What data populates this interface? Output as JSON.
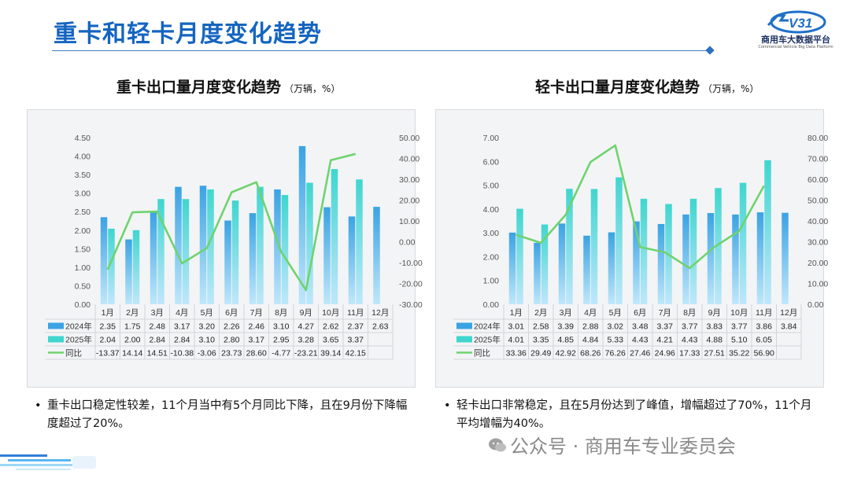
{
  "page": {
    "title": "重卡和轻卡月度变化趋势",
    "logo_name": "商用车大数据平台",
    "logo_sub": "Commercial Vehicle Big Data Platform",
    "logo_mark": "V31",
    "watermark": "公众号 · 商用车专业委员会"
  },
  "heavy": {
    "title": "重卡出口量月度变化趋势",
    "unit": "（万辆，%）",
    "note": "重卡出口稳定性较差，11个月当中有5个月同比下降，且在9月份下降幅度超过了20%。",
    "bullet": "•"
  },
  "light": {
    "title": "轻卡出口量月度变化趋势",
    "unit": "（万辆，%）",
    "note": "轻卡出口非常稳定，且在5月份达到了峰值，增幅超过了70%，11个月平均增幅为40%。",
    "bullet": "•"
  },
  "chart_data": [
    {
      "type": "bar",
      "title": "重卡出口量月度变化趋势",
      "categories": [
        "1月",
        "2月",
        "3月",
        "4月",
        "5月",
        "6月",
        "7月",
        "8月",
        "9月",
        "10月",
        "11月",
        "12月"
      ],
      "series": [
        {
          "name": "2024年",
          "kind": "bar",
          "color": "#3aa3e3",
          "values": [
            2.35,
            1.75,
            2.48,
            3.17,
            3.2,
            2.26,
            2.46,
            3.1,
            4.27,
            2.62,
            2.37,
            2.63
          ],
          "labels": [
            "2.35",
            "1.75",
            "2.48",
            "3.17",
            "3.20",
            "2.26",
            "2.46",
            "3.10",
            "4.27",
            "2.62",
            "2.37",
            "2.63"
          ]
        },
        {
          "name": "2025年",
          "kind": "bar",
          "color": "#3fd6cf",
          "values": [
            2.04,
            2.0,
            2.84,
            2.84,
            3.1,
            2.8,
            3.17,
            2.95,
            3.28,
            3.65,
            3.37,
            null
          ],
          "labels": [
            "2.04",
            "2.00",
            "2.84",
            "2.84",
            "3.10",
            "2.80",
            "3.17",
            "2.95",
            "3.28",
            "3.65",
            "3.37",
            ""
          ]
        },
        {
          "name": "同比",
          "kind": "line",
          "axis": "right",
          "color": "#6fd36f",
          "values": [
            -13.37,
            14.14,
            14.51,
            -10.38,
            -3.06,
            23.73,
            28.6,
            -4.77,
            -23.21,
            39.14,
            42.15,
            null
          ],
          "labels": [
            "-13.37",
            "14.14",
            "14.51",
            "-10.38",
            "-3.06",
            "23.73",
            "28.60",
            "-4.77",
            "-23.21",
            "39.14",
            "42.15",
            ""
          ]
        }
      ],
      "ylim": [
        0,
        4.5
      ],
      "yticks": [
        "4.50",
        "4.00",
        "3.50",
        "3.00",
        "2.50",
        "2.00",
        "1.50",
        "1.00",
        "0.50",
        "0.00"
      ],
      "y2lim": [
        -30,
        50
      ],
      "y2ticks": [
        "50.00",
        "40.00",
        "30.00",
        "20.00",
        "10.00",
        "0.00",
        "-10.00",
        "-20.00",
        "-30.00"
      ]
    },
    {
      "type": "bar",
      "title": "轻卡出口量月度变化趋势",
      "categories": [
        "1月",
        "2月",
        "3月",
        "4月",
        "5月",
        "6月",
        "7月",
        "8月",
        "9月",
        "10月",
        "11月",
        "12月"
      ],
      "series": [
        {
          "name": "2024年",
          "kind": "bar",
          "color": "#3aa3e3",
          "values": [
            3.01,
            2.58,
            3.39,
            2.88,
            3.02,
            3.48,
            3.37,
            3.77,
            3.83,
            3.77,
            3.86,
            3.84
          ],
          "labels": [
            "3.01",
            "2.58",
            "3.39",
            "2.88",
            "3.02",
            "3.48",
            "3.37",
            "3.77",
            "3.83",
            "3.77",
            "3.86",
            "3.84"
          ]
        },
        {
          "name": "2025年",
          "kind": "bar",
          "color": "#3fd6cf",
          "values": [
            4.01,
            3.35,
            4.85,
            4.84,
            5.33,
            4.43,
            4.21,
            4.43,
            4.88,
            5.1,
            6.05,
            null
          ],
          "labels": [
            "4.01",
            "3.35",
            "4.85",
            "4.84",
            "5.33",
            "4.43",
            "4.21",
            "4.43",
            "4.88",
            "5.10",
            "6.05",
            ""
          ]
        },
        {
          "name": "同比",
          "kind": "line",
          "axis": "right",
          "color": "#6fd36f",
          "values": [
            33.36,
            29.49,
            42.92,
            68.26,
            76.26,
            27.46,
            24.96,
            17.33,
            27.51,
            35.22,
            56.9,
            null
          ],
          "labels": [
            "33.36",
            "29.49",
            "42.92",
            "68.26",
            "76.26",
            "27.46",
            "24.96",
            "17.33",
            "27.51",
            "35.22",
            "56.90",
            ""
          ]
        }
      ],
      "ylim": [
        0,
        7
      ],
      "yticks": [
        "7.00",
        "6.00",
        "5.00",
        "4.00",
        "3.00",
        "2.00",
        "1.00",
        "0.00"
      ],
      "y2lim": [
        0,
        80
      ],
      "y2ticks": [
        "80.00",
        "70.00",
        "60.00",
        "50.00",
        "40.00",
        "30.00",
        "20.00",
        "10.00",
        "0.00"
      ]
    }
  ]
}
